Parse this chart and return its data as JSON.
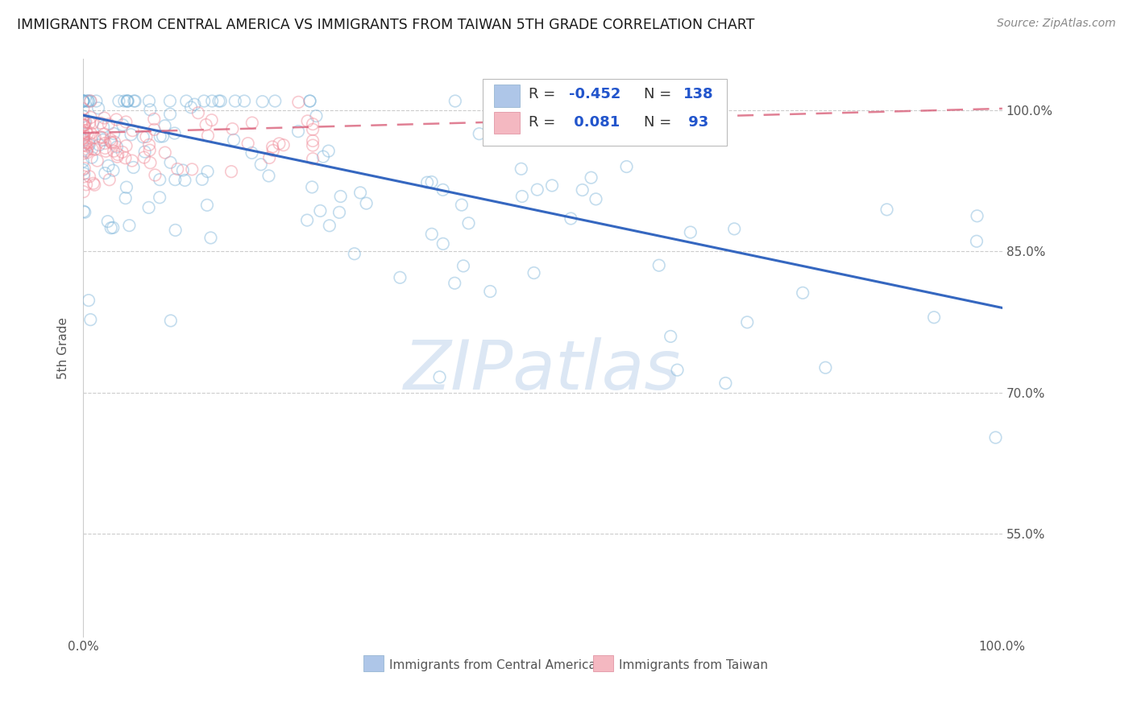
{
  "title": "IMMIGRANTS FROM CENTRAL AMERICA VS IMMIGRANTS FROM TAIWAN 5TH GRADE CORRELATION CHART",
  "source": "Source: ZipAtlas.com",
  "ylabel": "5th Grade",
  "y_tick_vals": [
    1.0,
    0.85,
    0.7,
    0.55
  ],
  "y_tick_labels": [
    "100.0%",
    "85.0%",
    "70.0%",
    "55.0%"
  ],
  "x_tick_vals": [
    0.0,
    1.0
  ],
  "x_tick_labels": [
    "0.0%",
    "100.0%"
  ],
  "blue_R": -0.452,
  "blue_N": 138,
  "pink_R": 0.081,
  "pink_N": 93,
  "blue_line_x": [
    0.0,
    1.0
  ],
  "blue_line_y": [
    0.995,
    0.79
  ],
  "pink_line_x": [
    0.0,
    1.0
  ],
  "pink_line_y": [
    0.976,
    1.002
  ],
  "background_color": "#ffffff",
  "grid_color": "#cccccc",
  "blue_dot_color": "#7ab3d9",
  "pink_dot_color": "#f08896",
  "blue_line_color": "#3567c0",
  "pink_line_color": "#d9607a",
  "legend_box_color": "#aec6e8",
  "legend_pink_color": "#f4b8c1",
  "scatter_size": 110,
  "scatter_alpha": 0.45,
  "watermark_text": "ZIPatlas",
  "watermark_color": "#c5d8ee",
  "watermark_alpha": 0.6,
  "bottom_legend_blue": "Immigrants from Central America",
  "bottom_legend_pink": "Immigrants from Taiwan",
  "ylim_min": 0.44,
  "ylim_max": 1.055
}
